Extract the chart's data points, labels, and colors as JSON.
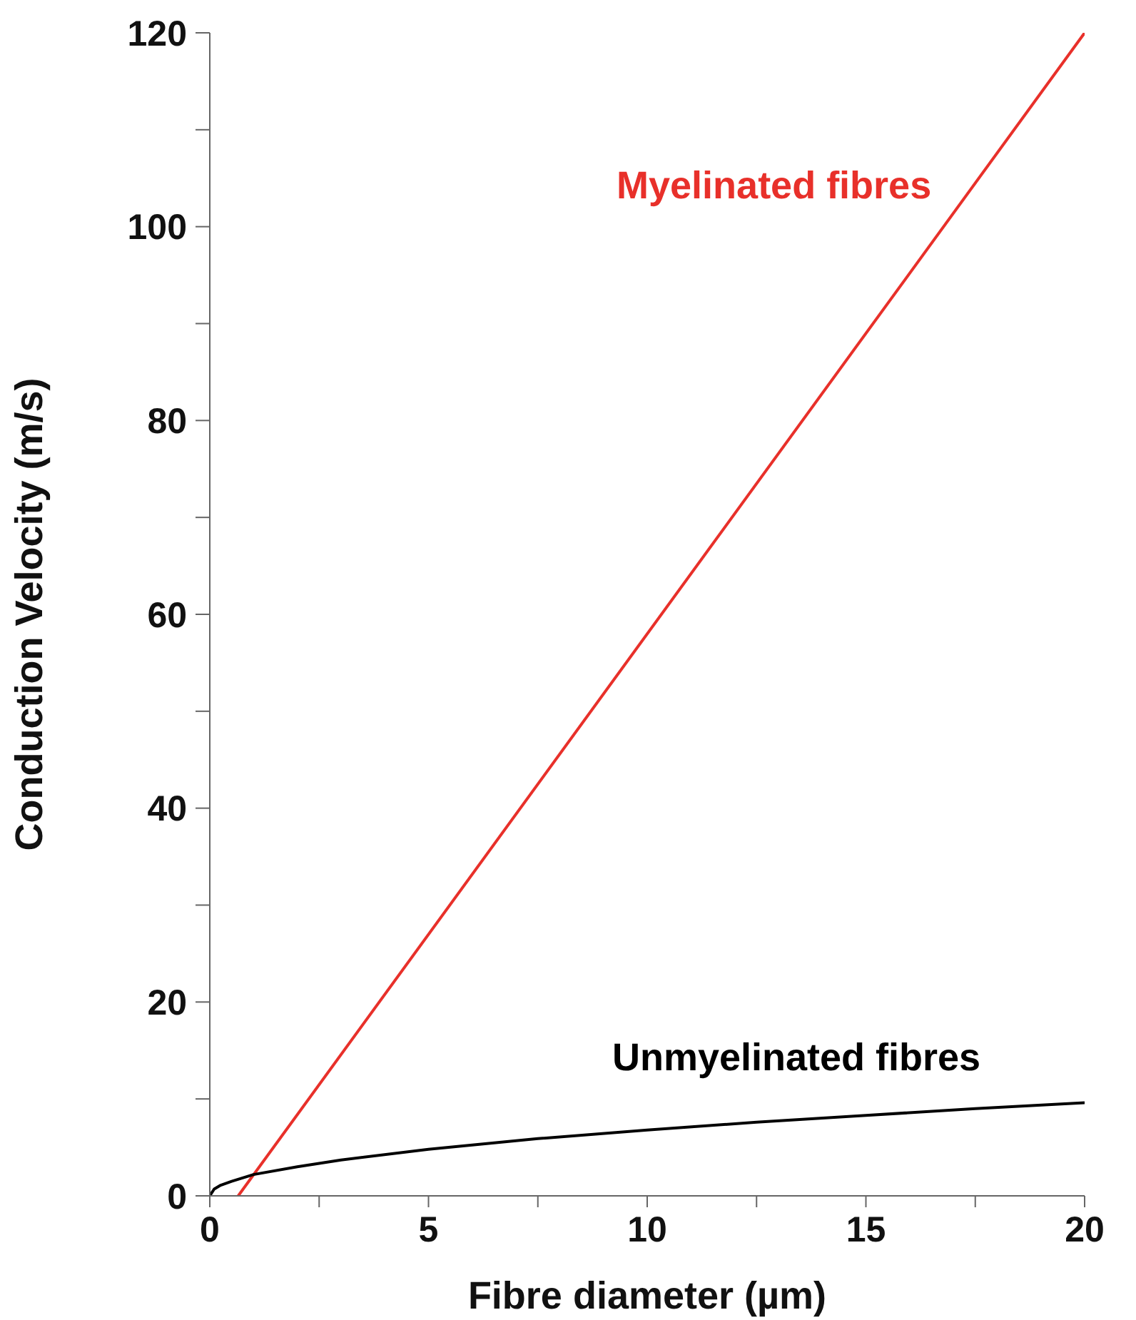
{
  "chart_data": {
    "type": "line",
    "xlabel": "Fibre diameter (µm)",
    "ylabel": "Conduction Velocity (m/s)",
    "xlim": [
      0,
      20
    ],
    "xticks": [
      0,
      {
        "value": 2.5,
        "label": null
      },
      5,
      {
        "value": 7.5,
        "label": null
      },
      10,
      {
        "value": 12.5,
        "label": null
      },
      15,
      {
        "value": 17.5,
        "label": null
      },
      20
    ],
    "ylim": [
      0,
      120
    ],
    "yticks": [
      0,
      {
        "value": 10,
        "label": null
      },
      20,
      {
        "value": 30,
        "label": null
      },
      40,
      {
        "value": 50,
        "label": null
      },
      60,
      {
        "value": 70,
        "label": null
      },
      80,
      {
        "value": 90,
        "label": null
      },
      100,
      {
        "value": 110,
        "label": null
      },
      120
    ],
    "grid": false,
    "legend": false,
    "marker": "none",
    "line_style": "solid",
    "series": [
      {
        "name": "Myelinated fibres",
        "color": "#e8302a",
        "x": [
          0.65,
          20
        ],
        "values": [
          0,
          120
        ]
      },
      {
        "name": "Unmyelinated fibres",
        "color": "#000000",
        "x": [
          0,
          0.1,
          0.25,
          0.5,
          1,
          2,
          3,
          5,
          7.5,
          10,
          12.5,
          15,
          17.5,
          20
        ],
        "values": [
          0,
          0.7,
          1.1,
          1.5,
          2.2,
          3.0,
          3.7,
          4.8,
          5.9,
          6.8,
          7.6,
          8.3,
          9.0,
          9.6
        ]
      }
    ]
  }
}
